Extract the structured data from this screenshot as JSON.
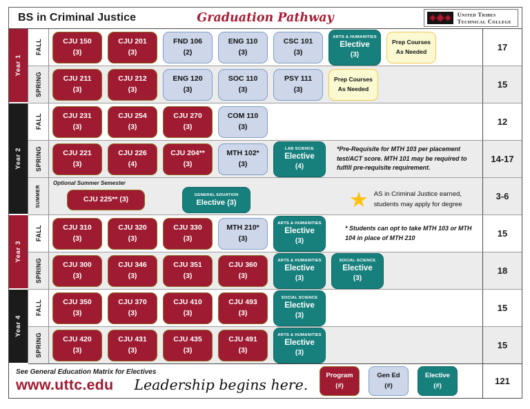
{
  "header": {
    "title": "BS in Criminal Justice",
    "pathway": "Graduation Pathway",
    "logo": {
      "line1": "United Tribes",
      "line2": "Technical College"
    }
  },
  "years": [
    {
      "label": "Year 1"
    },
    {
      "label": "Year 2"
    },
    {
      "label": "Year 3"
    },
    {
      "label": "Year 4"
    }
  ],
  "rows": [
    {
      "semester": "FALL",
      "credits": "17",
      "courses": [
        {
          "type": "program",
          "code": "CJU 150",
          "credits": "(3)"
        },
        {
          "type": "program",
          "code": "CJU 201",
          "credits": "(3)"
        },
        {
          "type": "gened",
          "code": "FND 106",
          "credits": "(2)"
        },
        {
          "type": "gened",
          "code": "ENG 110",
          "credits": "(3)"
        },
        {
          "type": "gened",
          "code": "CSC 101",
          "credits": "(3)"
        },
        {
          "type": "elective",
          "category": "ARTS & HUMANITIES",
          "label": "Elective",
          "credits": "(3)"
        },
        {
          "type": "prep",
          "line1": "Prep Courses",
          "line2": "As Needed"
        }
      ]
    },
    {
      "semester": "SPRING",
      "credits": "15",
      "courses": [
        {
          "type": "program",
          "code": "CJU 211",
          "credits": "(3)"
        },
        {
          "type": "program",
          "code": "CJU 212",
          "credits": "(3)"
        },
        {
          "type": "gened",
          "code": "ENG 120",
          "credits": "(3)"
        },
        {
          "type": "gened",
          "code": "SOC 110",
          "credits": "(3)"
        },
        {
          "type": "gened",
          "code": "PSY 111",
          "credits": "(3)"
        },
        {
          "type": "prep",
          "line1": "Prep Courses",
          "line2": "As Needed"
        }
      ]
    },
    {
      "semester": "FALL",
      "credits": "12",
      "courses": [
        {
          "type": "program",
          "code": "CJU 231",
          "credits": "(3)"
        },
        {
          "type": "program",
          "code": "CJU 254",
          "credits": "(3)"
        },
        {
          "type": "program",
          "code": "CJU 270",
          "credits": "(3)"
        },
        {
          "type": "gened",
          "code": "COM 110",
          "credits": "(3)"
        }
      ]
    },
    {
      "semester": "SPRING",
      "credits": "14-17",
      "courses": [
        {
          "type": "program",
          "code": "CJU 221",
          "credits": "(3)"
        },
        {
          "type": "program",
          "code": "CJU 226",
          "credits": "(4)"
        },
        {
          "type": "program",
          "code": "CJU 204**",
          "credits": "(3)"
        },
        {
          "type": "gened",
          "code": "MTH 102*",
          "credits": "(3)"
        },
        {
          "type": "elective",
          "category": "LAB SCIENCE",
          "label": "Elective",
          "credits": "(4)"
        }
      ],
      "note": {
        "text": "*Pre-Requisite for MTH 103 per placement test/ACT score.  MTH 101 may be required to fulfill pre-requisite requirement."
      }
    },
    {
      "semester": "SUMMER",
      "credits": "3-6",
      "header_note": "Optional Summer Semester",
      "courses": [
        {
          "type": "program",
          "code": "CJU 225** (3)",
          "inline": true
        },
        {
          "type": "elective",
          "category": "GENERAL EDUATION",
          "label": "Elective (3)",
          "inline": true
        }
      ],
      "note": {
        "icon": "star-icon",
        "plain": true,
        "text": "AS in Criminal Justice earned, students may apply for degree"
      }
    },
    {
      "semester": "FALL",
      "credits": "15",
      "courses": [
        {
          "type": "program",
          "code": "CJU 310",
          "credits": "(3)"
        },
        {
          "type": "program",
          "code": "CJU 320",
          "credits": "(3)"
        },
        {
          "type": "program",
          "code": "CJU 330",
          "credits": "(3)"
        },
        {
          "type": "gened",
          "code": "MTH 210*",
          "credits": "(3)"
        },
        {
          "type": "elective",
          "category": "ARTS & HUMANITIES",
          "label": "Elective",
          "credits": "(3)"
        }
      ],
      "note": {
        "text": "* Students can opt to take MTH 103 or MTH 104 in place of MTH 210"
      }
    },
    {
      "semester": "SPRING",
      "credits": "18",
      "courses": [
        {
          "type": "program",
          "code": "CJU 300",
          "credits": "(3)"
        },
        {
          "type": "program",
          "code": "CJU 346",
          "credits": "(3)"
        },
        {
          "type": "program",
          "code": "CJU 351",
          "credits": "(3)"
        },
        {
          "type": "program",
          "code": "CJU 360",
          "credits": "(3)"
        },
        {
          "type": "elective",
          "category": "ARTS & HUMANITIES",
          "label": "Elective",
          "credits": "(3)"
        },
        {
          "type": "elective",
          "category": "SOCIAL SCIENCE",
          "label": "Elective",
          "credits": "(3)"
        }
      ]
    },
    {
      "semester": "FALL",
      "credits": "15",
      "courses": [
        {
          "type": "program",
          "code": "CJU 350",
          "credits": "(3)"
        },
        {
          "type": "program",
          "code": "CJU 370",
          "credits": "(3)"
        },
        {
          "type": "program",
          "code": "CJU 410",
          "credits": "(3)"
        },
        {
          "type": "program",
          "code": "CJU 493",
          "credits": "(3)"
        },
        {
          "type": "elective",
          "category": "SOCIAL SCIENCE",
          "label": "Elective",
          "credits": "(3)"
        }
      ]
    },
    {
      "semester": "SPRING",
      "credits": "15",
      "courses": [
        {
          "type": "program",
          "code": "CJU 420",
          "credits": "(3)"
        },
        {
          "type": "program",
          "code": "CJU 431",
          "credits": "(3)"
        },
        {
          "type": "program",
          "code": "CJU 435",
          "credits": "(3)"
        },
        {
          "type": "program",
          "code": "CJU 491",
          "credits": "(3)"
        },
        {
          "type": "elective",
          "category": "ARTS & HUMANITIES",
          "label": "Elective",
          "credits": "(3)"
        }
      ]
    }
  ],
  "footer": {
    "see_matrix": "See General Education Matrix for Electives",
    "url": "www.uttc.edu",
    "slogan": "Leadership begins here.",
    "total_credits": "121",
    "legend": [
      {
        "type": "program",
        "label": "Program",
        "credits": "(#)"
      },
      {
        "type": "gened",
        "label": "Gen Ed",
        "credits": "(#)"
      },
      {
        "type": "elective",
        "label": "Elective",
        "credits": "(#)"
      }
    ]
  },
  "colors": {
    "program": "#9E1B32",
    "gened_fill": "#CDD7E9",
    "gened_border": "#7F9DC7",
    "elective": "#17807C",
    "prep_fill": "#FBF9D2",
    "prep_border": "#F2C94C",
    "accent_crimson": "#A71D35",
    "star": "#FFC110"
  }
}
